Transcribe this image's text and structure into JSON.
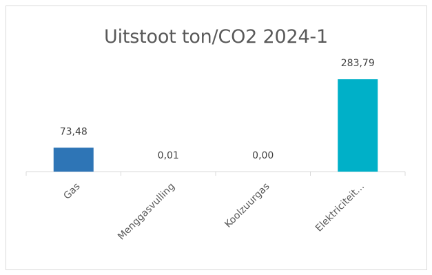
{
  "chart_data": {
    "type": "bar",
    "title": "Uitstoot ton/CO2 2024-1",
    "categories": [
      "Gas",
      "Menggasvulling",
      "Koolzuurgas",
      "Elektriciteit..."
    ],
    "values": [
      73.48,
      0.01,
      0.0,
      283.79
    ],
    "value_labels": [
      "73,48",
      "0,01",
      "0,00",
      "283,79"
    ],
    "bar_colors": [
      "#2e75b6",
      "#2e75b6",
      "#2e75b6",
      "#00b0c8"
    ],
    "axis_color": "#d9d9d9",
    "xlabel": "",
    "ylabel": "",
    "ylim": [
      0,
      300
    ],
    "grid": false,
    "legend": "none"
  }
}
